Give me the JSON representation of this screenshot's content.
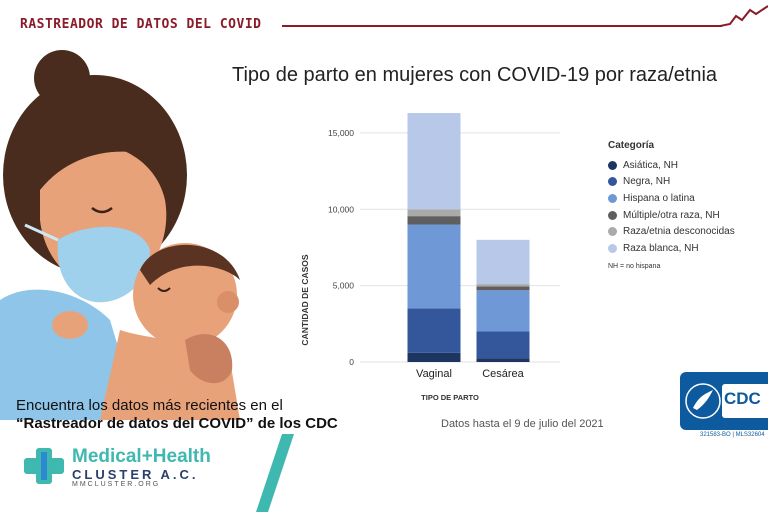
{
  "banner": {
    "title": "RASTREADOR DE DATOS DEL COVID"
  },
  "chart_data": {
    "type": "bar",
    "stacked": true,
    "title": "Tipo de parto en mujeres con COVID-19 por raza/etnia",
    "xlabel": "TIPO DE PARTO",
    "ylabel": "CANTIDAD DE CASOS",
    "ylim": [
      0,
      16500
    ],
    "yticks": [
      0,
      5000,
      10000,
      15000
    ],
    "ytick_labels": [
      "0",
      "5,000",
      "10,000",
      "15,000"
    ],
    "grid": true,
    "categories": [
      "Vaginal",
      "Cesárea"
    ],
    "series": [
      {
        "name": "Asiática, NH",
        "color": "#1c3661",
        "values": [
          600,
          250
        ]
      },
      {
        "name": "Negra, NH",
        "color": "#34569a",
        "values": [
          2900,
          1750
        ]
      },
      {
        "name": "Hispana o latina",
        "color": "#6f98d6",
        "values": [
          5500,
          2700
        ]
      },
      {
        "name": "Múltiple/otra raza, NH",
        "color": "#5f5f5f",
        "values": [
          550,
          250
        ]
      },
      {
        "name": "Raza/etnia desconocidas",
        "color": "#aaaaaa",
        "values": [
          450,
          150
        ]
      },
      {
        "name": "Raza blanca, NH",
        "color": "#b7c8e8",
        "values": [
          6300,
          2900
        ]
      }
    ],
    "legend": {
      "title": "Categoría",
      "position": "right",
      "note": "NH = no hispana"
    },
    "date_note": "Datos hasta el 9 de julio del 2021"
  },
  "cta": {
    "line1": "Encuentra los datos más recientes en el",
    "line2": "“Rastreador de datos del COVID” de los CDC"
  },
  "logo": {
    "name": "Medical+Health",
    "sub": "CLUSTER A.C.",
    "url": "MMCLUSTER.ORG"
  },
  "cdc": {
    "label": "CDC",
    "id": "321583-BO | MLS32604"
  },
  "colors": {
    "brand_red": "#8a1c2a",
    "cdc_blue": "#0d5a9e",
    "teal": "#3fb8b0"
  }
}
